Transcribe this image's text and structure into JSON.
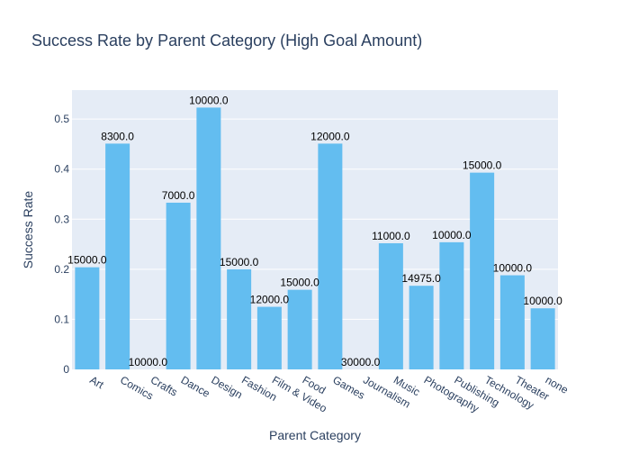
{
  "chart_data": {
    "type": "bar",
    "title": "Success Rate by Parent Category (High Goal Amount)",
    "xlabel": "Parent Category",
    "ylabel": "Success Rate",
    "categories": [
      "Art",
      "Comics",
      "Crafts",
      "Dance",
      "Design",
      "Fashion",
      "Film & Video",
      "Food",
      "Games",
      "Journalism",
      "Music",
      "Photography",
      "Publishing",
      "Technology",
      "Theater",
      "none"
    ],
    "values": [
      0.204,
      0.451,
      0.0,
      0.333,
      0.523,
      0.2,
      0.125,
      0.159,
      0.451,
      0.0,
      0.252,
      0.167,
      0.254,
      0.393,
      0.188,
      0.122
    ],
    "data_labels": [
      "15000.0",
      "8300.0",
      "10000.0",
      "7000.0",
      "10000.0",
      "15000.0",
      "12000.0",
      "15000.0",
      "12000.0",
      "30000.0",
      "11000.0",
      "14975.0",
      "10000.0",
      "15000.0",
      "10000.0",
      "10000.0"
    ],
    "ylim": [
      0,
      0.5579
    ],
    "yticks": [
      0,
      0.1,
      0.2,
      0.3,
      0.4,
      0.5
    ],
    "ytick_labels": [
      "0",
      "0.1",
      "0.2",
      "0.3",
      "0.4",
      "0.5"
    ],
    "grid": true,
    "legend": "none",
    "colors": {
      "bar": "#63bdf0",
      "plot_bg": "#e5ecf6",
      "grid": "#ffffff",
      "text": "#2a3f5f",
      "label_text": "#000000"
    }
  }
}
